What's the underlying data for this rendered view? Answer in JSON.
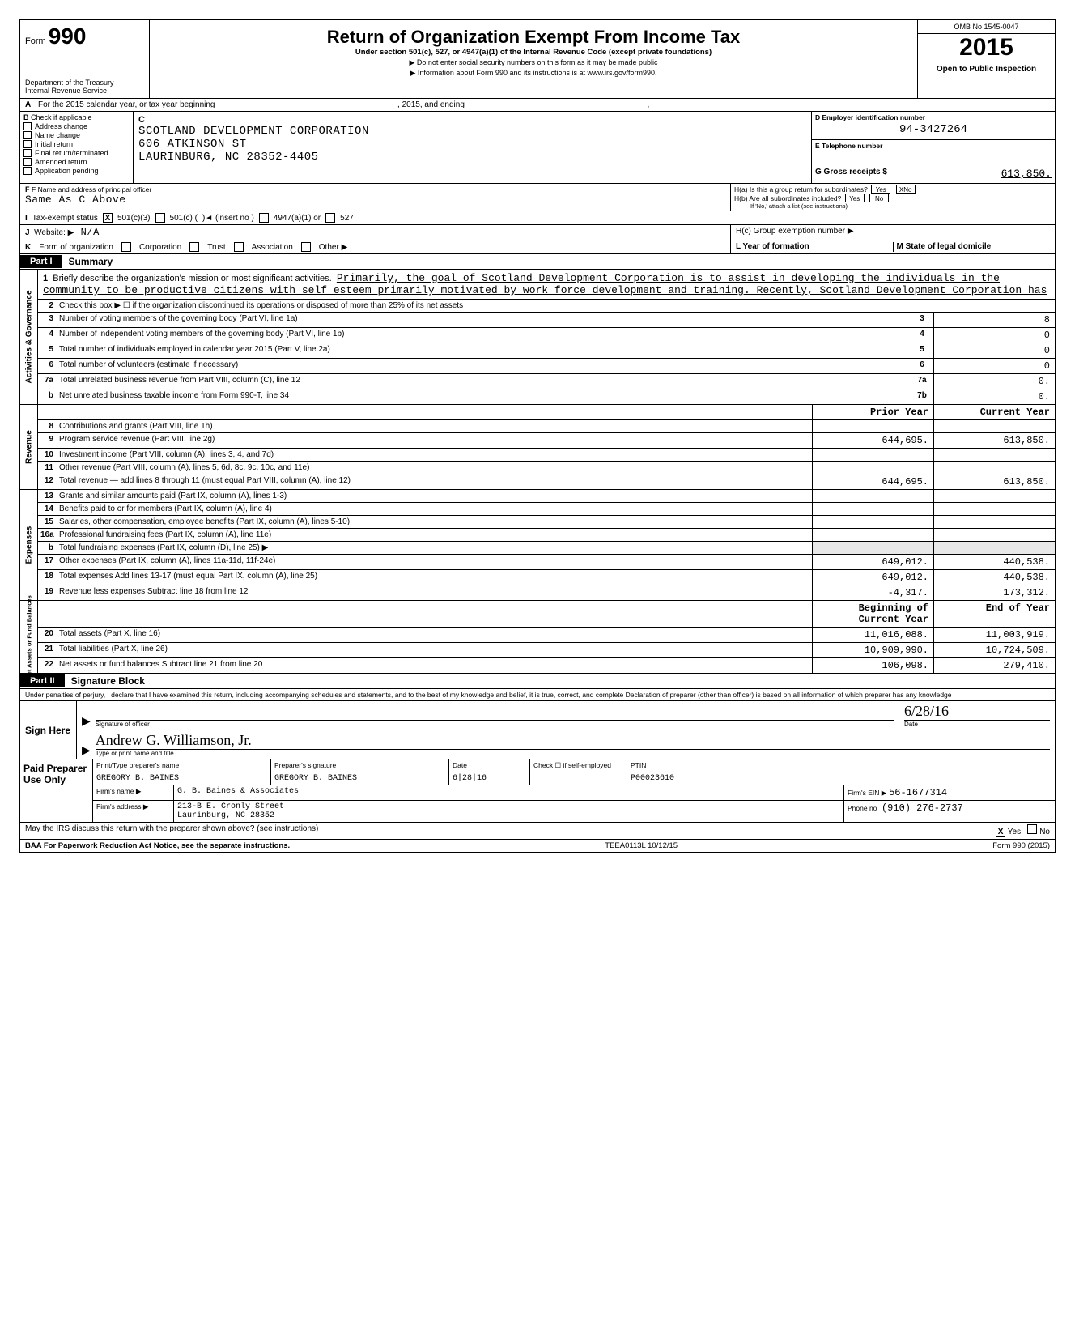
{
  "header": {
    "form_label_prefix": "Form",
    "form_number": "990",
    "dept": "Department of the Treasury",
    "irs": "Internal Revenue Service",
    "title": "Return of Organization Exempt From Income Tax",
    "subtitle": "Under section 501(c), 527, or 4947(a)(1) of the Internal Revenue Code (except private foundations)",
    "arrow1": "▶ Do not enter social security numbers on this form as it may be made public",
    "arrow2": "▶ Information about Form 990 and its instructions is at www.irs.gov/form990.",
    "omb": "OMB No 1545-0047",
    "year": "2015",
    "open": "Open to Public Inspection"
  },
  "lineA": {
    "label_left": "For the 2015 calendar year, or tax year beginning",
    "label_mid": ", 2015, and ending",
    "comma": ","
  },
  "B": {
    "header": "Check if applicable",
    "items": [
      "Address change",
      "Name change",
      "Initial return",
      "Final return/terminated",
      "Amended return",
      "Application pending"
    ]
  },
  "C": {
    "label": "C",
    "name": "SCOTLAND DEVELOPMENT CORPORATION",
    "addr": "606 ATKINSON ST",
    "city": "LAURINBURG, NC 28352-4405",
    "F_label": "F  Name and address of principal officer",
    "F_value": "Same As C Above"
  },
  "D": {
    "label": "D  Employer identification number",
    "ein": "94-3427264",
    "E_label": "E  Telephone number",
    "G_label": "G  Gross receipts $",
    "G_value": "613,850."
  },
  "H": {
    "a": "H(a) Is this a group return for subordinates?",
    "b": "H(b) Are all subordinates included?",
    "b_note": "If 'No,' attach a list (see instructions)",
    "c": "H(c) Group exemption number ▶",
    "yes": "Yes",
    "no": "No",
    "x": "X"
  },
  "I": {
    "label": "Tax-exempt status",
    "x": "X",
    "c3": "501(c)(3)",
    "c": "501(c) (",
    "insert": ")◄  (insert no )",
    "a1": "4947(a)(1) or",
    "s527": "527"
  },
  "J": {
    "label": "Website: ▶",
    "value": "N/A"
  },
  "K": {
    "label": "Form of organization",
    "opts": [
      "Corporation",
      "Trust",
      "Association",
      "Other ▶"
    ],
    "L": "L Year of formation",
    "M": "M State of legal domicile"
  },
  "partI": {
    "tab": "Part I",
    "title": "Summary",
    "mission_label": "Briefly describe the organization's mission or most significant activities.",
    "mission": "Primarily, the goal of Scotland Development Corporation is to assist in developing the individuals in the community to be productive citizens with self esteem primarily motivated by work force development and training.  Recently, Scotland Development Corporation has",
    "line2": "Check this box ▶  ☐  if the organization discontinued its operations or disposed of more than 25% of its net assets",
    "rows_gov": [
      {
        "n": "3",
        "d": "Number of voting members of the governing body (Part VI, line 1a)",
        "c": "3",
        "v": "8"
      },
      {
        "n": "4",
        "d": "Number of independent voting members of the governing body (Part VI, line 1b)",
        "c": "4",
        "v": "0"
      },
      {
        "n": "5",
        "d": "Total number of individuals employed in calendar year 2015 (Part V, line 2a)",
        "c": "5",
        "v": "0"
      },
      {
        "n": "6",
        "d": "Total number of volunteers (estimate if necessary)",
        "c": "6",
        "v": "0"
      },
      {
        "n": "7a",
        "d": "Total unrelated business revenue from Part VIII, column (C), line 12",
        "c": "7a",
        "v": "0."
      },
      {
        "n": "b",
        "d": "Net unrelated business taxable income from Form 990-T, line 34",
        "c": "7b",
        "v": "0."
      }
    ],
    "col_prior": "Prior Year",
    "col_curr": "Current Year",
    "rows_rev": [
      {
        "n": "8",
        "d": "Contributions and grants (Part VIII, line 1h)",
        "p": "",
        "c": ""
      },
      {
        "n": "9",
        "d": "Program service revenue (Part VIII, line 2g)",
        "p": "644,695.",
        "c": "613,850."
      },
      {
        "n": "10",
        "d": "Investment income (Part VIII, column (A), lines 3, 4, and 7d)",
        "p": "",
        "c": ""
      },
      {
        "n": "11",
        "d": "Other revenue (Part VIII, column (A), lines 5, 6d, 8c, 9c, 10c, and 11e)",
        "p": "",
        "c": ""
      },
      {
        "n": "12",
        "d": "Total revenue — add lines 8 through 11 (must equal Part VIII, column (A), line 12)",
        "p": "644,695.",
        "c": "613,850."
      }
    ],
    "rows_exp": [
      {
        "n": "13",
        "d": "Grants and similar amounts paid (Part IX, column (A), lines 1-3)",
        "p": "",
        "c": ""
      },
      {
        "n": "14",
        "d": "Benefits paid to or for members (Part IX, column (A), line 4)",
        "p": "",
        "c": ""
      },
      {
        "n": "15",
        "d": "Salaries, other compensation, employee benefits (Part IX, column (A), lines 5-10)",
        "p": "",
        "c": ""
      },
      {
        "n": "16a",
        "d": "Professional fundraising fees (Part IX, column (A), line 11e)",
        "p": "",
        "c": ""
      },
      {
        "n": "b",
        "d": "Total fundraising expenses (Part IX, column (D), line 25) ▶",
        "p": "—",
        "c": "—"
      },
      {
        "n": "17",
        "d": "Other expenses (Part IX, column (A), lines 11a-11d, 11f-24e)",
        "p": "649,012.",
        "c": "440,538."
      },
      {
        "n": "18",
        "d": "Total expenses  Add lines 13-17 (must equal Part IX, column (A), line 25)",
        "p": "649,012.",
        "c": "440,538."
      },
      {
        "n": "19",
        "d": "Revenue less expenses  Subtract line 18 from line 12",
        "p": "-4,317.",
        "c": "173,312."
      }
    ],
    "col_begin": "Beginning of Current Year",
    "col_end": "End of Year",
    "rows_net": [
      {
        "n": "20",
        "d": "Total assets (Part X, line 16)",
        "p": "11,016,088.",
        "c": "11,003,919."
      },
      {
        "n": "21",
        "d": "Total liabilities (Part X, line 26)",
        "p": "10,909,990.",
        "c": "10,724,509."
      },
      {
        "n": "22",
        "d": "Net assets or fund balances  Subtract line 21 from line 20",
        "p": "106,098.",
        "c": "279,410."
      }
    ],
    "vlabels": {
      "gov": "Activities & Governance",
      "rev": "Revenue",
      "exp": "Expenses",
      "net": "Net Assets or\nFund Balances"
    }
  },
  "partII": {
    "tab": "Part II",
    "title": "Signature Block",
    "decl": "Under penalties of perjury, I declare that I have examined this return, including accompanying schedules and statements, and to the best of my knowledge and belief, it is true, correct, and complete  Declaration of preparer (other than officer) is based on all information of which preparer has any knowledge",
    "sign_here": "Sign Here",
    "sig_of_officer": "Signature of officer",
    "date_label": "Date",
    "date_val": "6/28/16",
    "name_line": "Andrew G. Williamson, Jr.",
    "type_print": "Type or print name and title"
  },
  "prep": {
    "left": "Paid Preparer Use Only",
    "h1": "Print/Type preparer's name",
    "h2": "Preparer's signature",
    "h3": "Date",
    "h4": "Check ☐ if self-employed",
    "h5": "PTIN",
    "name": "GREGORY B. BAINES",
    "sig": "GREGORY B. BAINES",
    "date": "6|28|16",
    "ptin": "P00023610",
    "firm_label": "Firm's name   ▶",
    "firm": "G. B. Baines & Associates",
    "addr_label": "Firm's address  ▶",
    "addr1": "213-B E. Cronly Street",
    "addr2": "Laurinburg, NC 28352",
    "ein_label": "Firm's EIN ▶",
    "ein": "56-1677314",
    "phone_label": "Phone no",
    "phone": "(910) 276-2737",
    "discuss": "May the IRS discuss this return with the preparer shown above? (see instructions)",
    "yes": "Yes",
    "no": "No",
    "x": "X"
  },
  "footer": {
    "left": "BAA For Paperwork Reduction Act Notice, see the separate instructions.",
    "mid": "TEEA0113L 10/12/15",
    "right": "Form 990 (2015)"
  },
  "colors": {
    "ink": "#000000",
    "paper": "#ffffff",
    "shade": "#e8e8e8"
  }
}
